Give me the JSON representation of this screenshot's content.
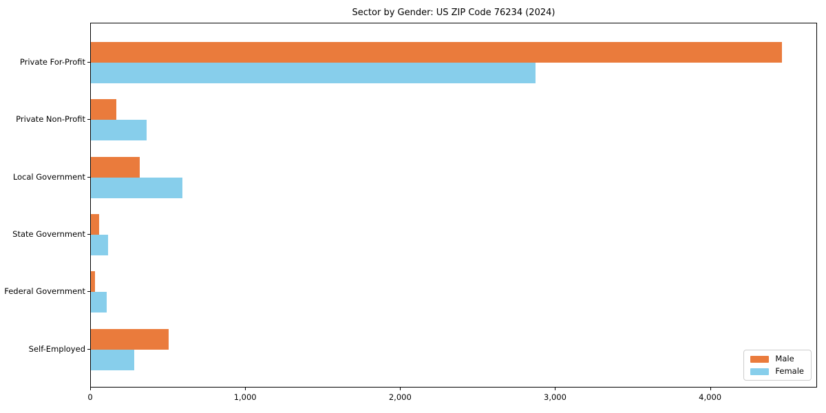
{
  "title": "Sector by Gender: US ZIP Code 76234 (2024)",
  "chart_data": {
    "type": "bar",
    "orientation": "horizontal",
    "title": "Sector by Gender: US ZIP Code 76234 (2024)",
    "categories": [
      "Private For-Profit",
      "Private Non-Profit",
      "Local Government",
      "State Government",
      "Federal Government",
      "Self-Employed"
    ],
    "series": [
      {
        "name": "Male",
        "color": "#EA7B3C",
        "values": [
          4460,
          165,
          315,
          55,
          25,
          500
        ]
      },
      {
        "name": "Female",
        "color": "#87CEEB",
        "values": [
          2870,
          360,
          590,
          110,
          100,
          280
        ]
      }
    ],
    "xlabel": "",
    "ylabel": "",
    "xlim": [
      0,
      4690
    ],
    "xticks": [
      0,
      1000,
      2000,
      3000,
      4000
    ],
    "xtick_labels": [
      "0",
      "1,000",
      "2,000",
      "3,000",
      "4,000"
    ],
    "legend_position": "lower right",
    "grid": false,
    "axis_color": "#000000"
  }
}
